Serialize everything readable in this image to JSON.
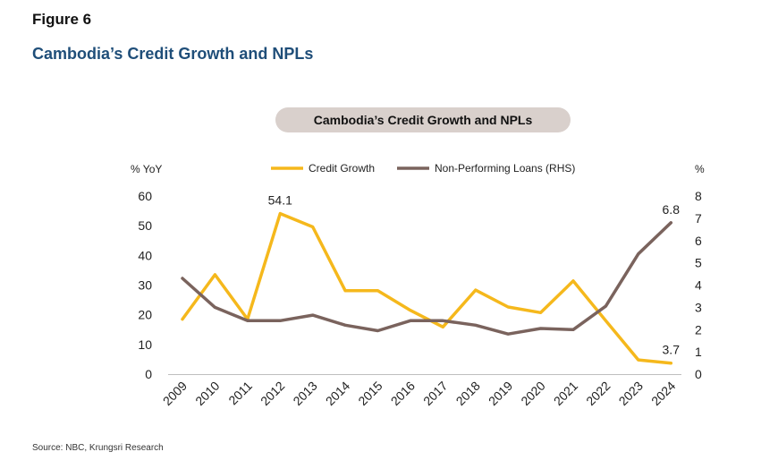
{
  "figure_label": "Figure 6",
  "figure_title": "Cambodia’s Credit Growth and NPLs",
  "source": "Source: NBC, Krungsri Research",
  "chart_data": {
    "type": "line",
    "title": "Cambodia’s Credit Growth and NPLs",
    "ylabel_left": "% YoY",
    "ylabel_right": "%",
    "x": [
      "2009",
      "2010",
      "2011",
      "2012",
      "2013",
      "2014",
      "2015",
      "2016",
      "2017",
      "2018",
      "2019",
      "2020",
      "2021",
      "2022",
      "2023",
      "2024"
    ],
    "ylim_left": [
      0,
      60
    ],
    "yticks_left": [
      "0",
      "10",
      "20",
      "30",
      "40",
      "50",
      "60"
    ],
    "ylim_right": [
      0,
      8
    ],
    "yticks_right": [
      "0",
      "1",
      "2",
      "3",
      "4",
      "5",
      "6",
      "7",
      "8"
    ],
    "grid": false,
    "legend_position": "top-center",
    "series": [
      {
        "name": "Credit Growth",
        "axis": "left",
        "color": "#f5b81c",
        "values": [
          18.5,
          33.5,
          18.5,
          54.1,
          49.6,
          28.1,
          28.1,
          21.5,
          15.9,
          28.3,
          22.6,
          20.7,
          31.4,
          18.0,
          4.8,
          3.7
        ]
      },
      {
        "name": "Non-Performing Loans (RHS)",
        "axis": "right",
        "color": "#7a635d",
        "values": [
          4.3,
          3.0,
          2.4,
          2.4,
          2.65,
          2.2,
          1.95,
          2.4,
          2.4,
          2.2,
          1.8,
          2.05,
          2.0,
          3.05,
          5.4,
          6.8
        ]
      }
    ],
    "annotations": [
      {
        "series": "Credit Growth",
        "x": "2012",
        "label": "54.1"
      },
      {
        "series": "Credit Growth",
        "x": "2024",
        "label": "3.7"
      },
      {
        "series": "Non-Performing Loans (RHS)",
        "x": "2024",
        "label": "6.8"
      }
    ]
  }
}
